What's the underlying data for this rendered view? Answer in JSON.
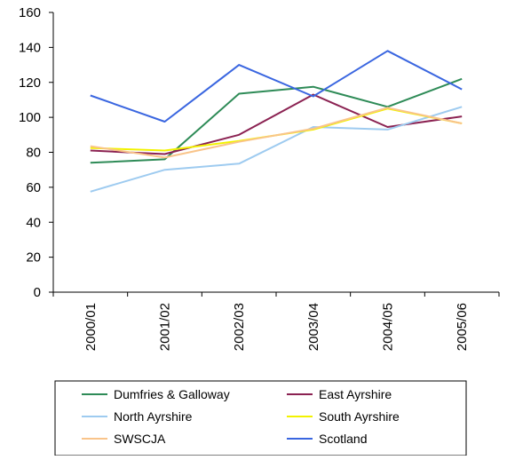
{
  "chart_data": {
    "type": "line",
    "categories": [
      "2000/01",
      "2001/02",
      "2002/03",
      "2003/04",
      "2004/05",
      "2005/06"
    ],
    "ylim": [
      0,
      160
    ],
    "yticks": [
      0,
      20,
      40,
      60,
      80,
      100,
      120,
      140,
      160
    ],
    "grid": false,
    "legend_position": "bottom",
    "series": [
      {
        "name": "Dumfries & Galloway",
        "color": "#2e8b57",
        "values": [
          74,
          76,
          113.5,
          117.5,
          106,
          122
        ]
      },
      {
        "name": "East Ayrshire",
        "color": "#8b2252",
        "values": [
          81,
          79,
          90,
          113,
          94.5,
          100.5
        ]
      },
      {
        "name": "North Ayrshire",
        "color": "#9ecbf0",
        "values": [
          57.5,
          70,
          73.5,
          94.5,
          93,
          106
        ]
      },
      {
        "name": "South Ayrshire",
        "color": "#f2f200",
        "values": [
          82.5,
          81,
          86.5,
          93,
          105,
          96.5
        ]
      },
      {
        "name": "SWSCJA",
        "color": "#f9c48a",
        "values": [
          83.5,
          77,
          86,
          93.5,
          105.5,
          96.5
        ]
      },
      {
        "name": "Scotland",
        "color": "#3a66e0",
        "values": [
          112.5,
          97.5,
          130,
          112,
          138,
          116
        ]
      }
    ]
  }
}
